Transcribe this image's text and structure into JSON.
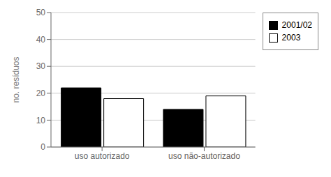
{
  "chart_data": {
    "type": "bar",
    "categories": [
      "uso autorizado",
      "uso não-autorizado"
    ],
    "series": [
      {
        "name": "2001/02",
        "color": "#000000",
        "values": [
          22,
          14
        ]
      },
      {
        "name": "2003",
        "color": "#ffffff",
        "values": [
          18,
          19
        ]
      }
    ],
    "ylabel": "no. resíduos",
    "ylim": [
      0,
      50
    ],
    "yticks": [
      0,
      10,
      20,
      30,
      40,
      50
    ],
    "grid": true,
    "legend": "right"
  }
}
